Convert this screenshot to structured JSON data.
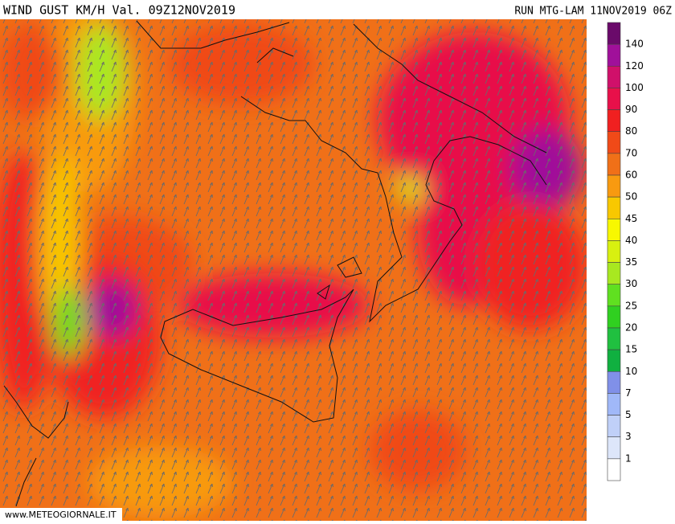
{
  "header": {
    "title": "WIND GUST KM/H Val. 09Z12NOV2019",
    "run": "RUN MTG-LAM 11NOV2019 06Z"
  },
  "colorbar": {
    "levels": [
      140,
      120,
      100,
      90,
      80,
      70,
      60,
      50,
      45,
      40,
      35,
      30,
      25,
      20,
      15,
      10,
      7,
      5,
      3,
      1
    ],
    "colors": [
      "#6a0a6a",
      "#a0109a",
      "#d0106a",
      "#e8104a",
      "#f02020",
      "#f04a18",
      "#f07018",
      "#f89a10",
      "#f8c800",
      "#f8f800",
      "#d8f010",
      "#a8e820",
      "#60e020",
      "#30d020",
      "#20c040",
      "#10b040",
      "#8090e8",
      "#a0b8f8",
      "#c0d0f8",
      "#dde6fa",
      "#ffffff"
    ]
  },
  "footer": {
    "credit": "www.METEOGIORNALE.IT"
  }
}
